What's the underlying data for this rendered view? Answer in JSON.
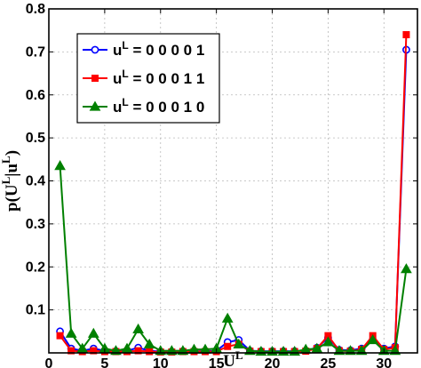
{
  "chart_data": {
    "type": "line",
    "xlabel_base": "U",
    "xlabel_sup": "L",
    "ylabel_parts": {
      "prefix": "p(U",
      "sup1": "L",
      "middle": "|u",
      "sup2": "L",
      "suffix": ")"
    },
    "xlim": [
      0,
      33
    ],
    "ylim": [
      0,
      0.8
    ],
    "xticks": [
      0,
      5,
      10,
      15,
      20,
      25,
      30
    ],
    "yticks": [
      0.1,
      0.2,
      0.3,
      0.4,
      0.5,
      0.6,
      0.7,
      0.8
    ],
    "ytick_labels": [
      "0.1",
      "0.2",
      "0.3",
      "0.4",
      "0.5",
      "0.6",
      "0.7",
      "0.8"
    ],
    "grid": true,
    "legend": {
      "placement": "top-left",
      "base": "u",
      "sup": "L"
    },
    "x": [
      1,
      2,
      3,
      4,
      5,
      6,
      7,
      8,
      9,
      10,
      11,
      12,
      13,
      14,
      15,
      16,
      17,
      18,
      19,
      20,
      21,
      22,
      23,
      24,
      25,
      26,
      27,
      28,
      29,
      30,
      31,
      32
    ],
    "series": [
      {
        "name": " = 0 0 0 0 1",
        "color": "#0000ff",
        "marker": "circle",
        "values": [
          0.05,
          0.01,
          0.005,
          0.01,
          0.005,
          0.004,
          0.005,
          0.012,
          0.005,
          0.003,
          0.003,
          0.004,
          0.004,
          0.004,
          0.005,
          0.025,
          0.03,
          0.005,
          0.004,
          0.004,
          0.004,
          0.004,
          0.005,
          0.012,
          0.035,
          0.007,
          0.006,
          0.01,
          0.03,
          0.01,
          0.015,
          0.705
        ]
      },
      {
        "name": " = 0 0 0 1 1",
        "color": "#ff0000",
        "marker": "square",
        "values": [
          0.04,
          0.005,
          0.003,
          0.005,
          0.003,
          0.003,
          0.003,
          0.005,
          0.003,
          0.002,
          0.002,
          0.003,
          0.003,
          0.003,
          0.003,
          0.015,
          0.02,
          0.004,
          0.003,
          0.003,
          0.003,
          0.003,
          0.004,
          0.01,
          0.04,
          0.005,
          0.004,
          0.008,
          0.04,
          0.008,
          0.012,
          0.74
        ]
      },
      {
        "name": " = 0 0 0 1 0",
        "color": "#008000",
        "marker": "triangle",
        "values": [
          0.435,
          0.045,
          0.01,
          0.045,
          0.01,
          0.005,
          0.01,
          0.055,
          0.02,
          0.005,
          0.005,
          0.005,
          0.008,
          0.008,
          0.01,
          0.08,
          0.02,
          0.005,
          0.003,
          0.003,
          0.003,
          0.003,
          0.008,
          0.01,
          0.025,
          0.005,
          0.005,
          0.005,
          0.03,
          0.005,
          0.005,
          0.195
        ]
      }
    ]
  }
}
